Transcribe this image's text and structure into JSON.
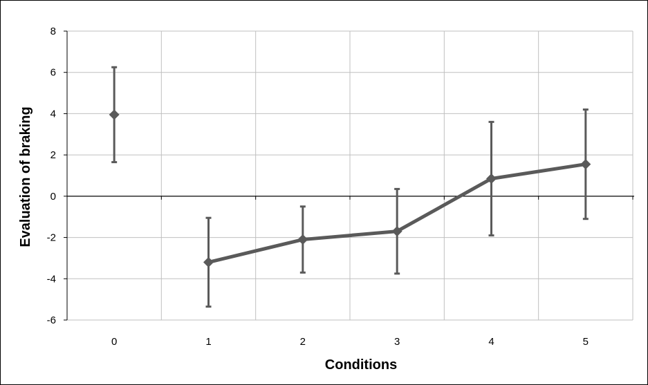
{
  "chart_data": {
    "type": "line",
    "title": "",
    "xlabel": "Conditions",
    "ylabel": "Evaluation of braking",
    "categories": [
      "0",
      "1",
      "2",
      "3",
      "4",
      "5"
    ],
    "x": [
      0,
      1,
      2,
      3,
      4,
      5
    ],
    "ylim": [
      -6,
      8
    ],
    "yticks": [
      -6,
      -4,
      -2,
      0,
      2,
      4,
      6,
      8
    ],
    "yticklabels": [
      "-6",
      "-4",
      "-2",
      "0",
      "2",
      "4",
      "6",
      "8"
    ],
    "grid": true,
    "legend": "none",
    "series": [
      {
        "values": [
          3.95,
          -3.2,
          -2.1,
          -1.7,
          0.85,
          1.55
        ],
        "error_low": [
          1.65,
          -5.35,
          -3.7,
          -3.75,
          -1.9,
          -1.1
        ],
        "error_high": [
          6.25,
          -1.05,
          -0.5,
          0.35,
          3.6,
          4.2
        ],
        "connected_from_index": 1,
        "marker": "diamond",
        "color": "#5a5a5a"
      }
    ],
    "colors": {
      "series": "#5a5a5a",
      "grid": "#bfbfbf",
      "axis": "#000000"
    }
  }
}
